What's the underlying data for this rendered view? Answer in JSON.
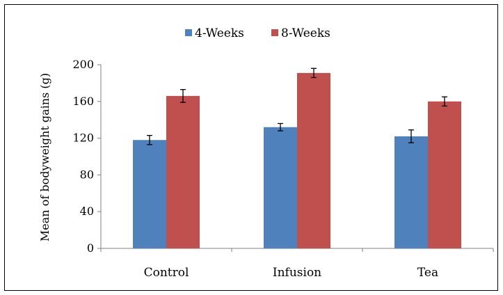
{
  "chart_data": {
    "type": "bar",
    "title": "",
    "xlabel": "",
    "ylabel": "Mean of bodyweight gains (g)",
    "categories": [
      "Control",
      "Infusion",
      "Tea"
    ],
    "series": [
      {
        "name": "4-Weeks",
        "color": "#4F81BD",
        "values": [
          118,
          132,
          122
        ],
        "errors": [
          5,
          4,
          7
        ]
      },
      {
        "name": "8-Weeks",
        "color": "#C0504D",
        "values": [
          166,
          191,
          160
        ],
        "errors": [
          7,
          5,
          5
        ]
      }
    ],
    "ylim": [
      0,
      200
    ],
    "yticks": [
      0,
      40,
      80,
      120,
      160,
      200
    ],
    "grid": false,
    "legend_position": "top"
  }
}
